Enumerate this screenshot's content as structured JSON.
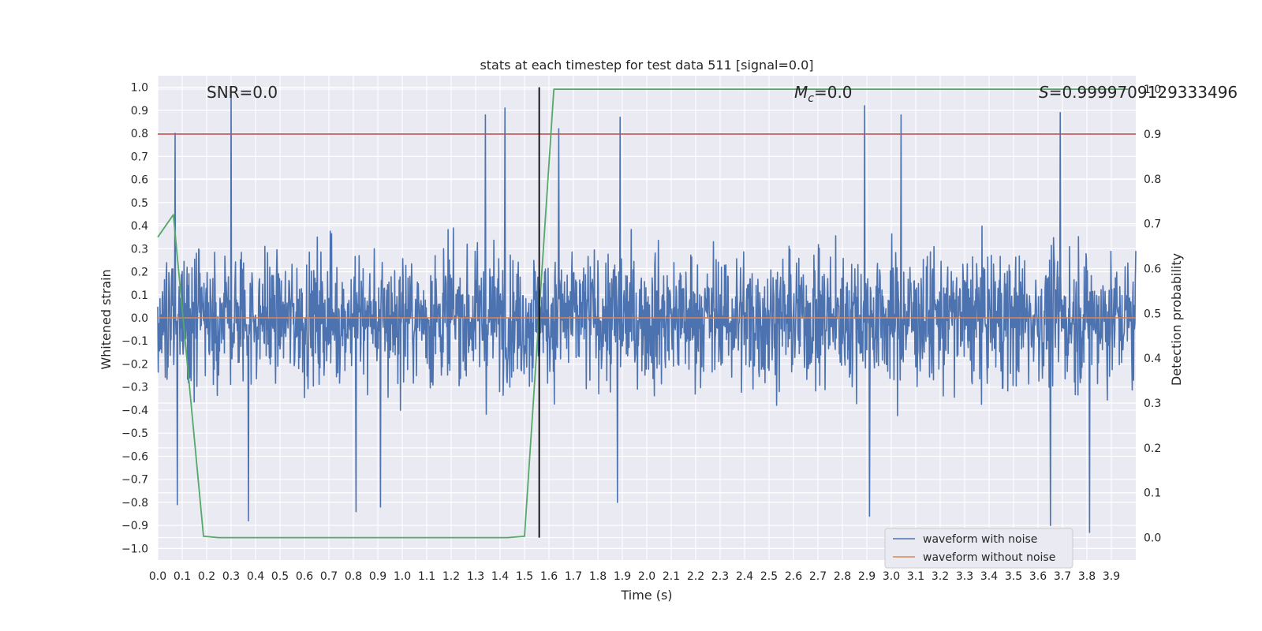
{
  "chart_data": {
    "type": "line",
    "title": "stats at each timestep for test data 511 [signal=0.0]",
    "xlabel": "Time (s)",
    "ylabel": "Whitened strain",
    "y2label": "Detection probability",
    "xlim": [
      0.0,
      4.0
    ],
    "ylim": [
      -1.05,
      1.05
    ],
    "y2lim": [
      -0.05,
      1.03
    ],
    "grid": true,
    "legend_position": "lower-right",
    "x_ticks": [
      0.0,
      0.1,
      0.2,
      0.3,
      0.4,
      0.5,
      0.6,
      0.7,
      0.8,
      0.9,
      1.0,
      1.1,
      1.2,
      1.3,
      1.4,
      1.5,
      1.6,
      1.7,
      1.8,
      1.9,
      2.0,
      2.1,
      2.2,
      2.3,
      2.4,
      2.5,
      2.6,
      2.7,
      2.8,
      2.9,
      3.0,
      3.1,
      3.2,
      3.3,
      3.4,
      3.5,
      3.6,
      3.7,
      3.8,
      3.9
    ],
    "x_tick_labels": [
      "0.0",
      "0.1",
      "0.2",
      "0.3",
      "0.4",
      "0.5",
      "0.6",
      "0.7",
      "0.8",
      "0.9",
      "1.0",
      "1.1",
      "1.2",
      "1.3",
      "1.4",
      "1.5",
      "1.6",
      "1.7",
      "1.8",
      "1.9",
      "2.0",
      "2.1",
      "2.2",
      "2.3",
      "2.4",
      "2.5",
      "2.6",
      "2.7",
      "2.8",
      "2.9",
      "3.0",
      "3.1",
      "3.2",
      "3.3",
      "3.4",
      "3.5",
      "3.6",
      "3.7",
      "3.8",
      "3.9"
    ],
    "y_ticks": [
      1.0,
      0.9,
      0.8,
      0.7,
      0.6,
      0.5,
      0.4,
      0.3,
      0.2,
      0.1,
      0.0,
      -0.1,
      -0.2,
      -0.3,
      -0.4,
      -0.5,
      -0.6,
      -0.7,
      -0.8,
      -0.9,
      -1.0
    ],
    "y_tick_labels": [
      "1.0",
      "0.9",
      "0.8",
      "0.7",
      "0.6",
      "0.5",
      "0.4",
      "0.3",
      "0.2",
      "0.1",
      "0.0",
      "−0.1",
      "−0.2",
      "−0.3",
      "−0.4",
      "−0.5",
      "−0.6",
      "−0.7",
      "−0.8",
      "−0.9",
      "−1.0"
    ],
    "y2_ticks": [
      1.0,
      0.9,
      0.8,
      0.7,
      0.6,
      0.5,
      0.4,
      0.3,
      0.2,
      0.1,
      0.0
    ],
    "y2_tick_labels": [
      "1.0",
      "0.9",
      "0.8",
      "0.7",
      "0.6",
      "0.5",
      "0.4",
      "0.3",
      "0.2",
      "0.1",
      "0.0"
    ],
    "series": [
      {
        "name": "waveform with noise",
        "axis": "left",
        "color": "#4c72b0",
        "note_values": "dense noise, envelope approx ±0.5 with peaks up to 1.0 and down to -0.93",
        "peaks": [
          {
            "x": 0.07,
            "y": 0.8
          },
          {
            "x": 0.3,
            "y": 1.0
          },
          {
            "x": 0.37,
            "y": -0.88
          },
          {
            "x": 0.08,
            "y": -0.81
          },
          {
            "x": 0.81,
            "y": -0.84
          },
          {
            "x": 0.91,
            "y": -0.82
          },
          {
            "x": 1.34,
            "y": 0.88
          },
          {
            "x": 1.42,
            "y": 0.91
          },
          {
            "x": 1.64,
            "y": 0.82
          },
          {
            "x": 1.89,
            "y": 0.87
          },
          {
            "x": 1.88,
            "y": -0.8
          },
          {
            "x": 2.89,
            "y": 0.92
          },
          {
            "x": 2.91,
            "y": -0.86
          },
          {
            "x": 3.04,
            "y": 0.88
          },
          {
            "x": 3.69,
            "y": 0.89
          },
          {
            "x": 3.65,
            "y": -0.9
          },
          {
            "x": 3.81,
            "y": -0.93
          }
        ]
      },
      {
        "name": "waveform without noise",
        "axis": "left",
        "color": "#dd8452",
        "x": [
          0.0,
          4.0
        ],
        "values": [
          0.0,
          0.0
        ]
      },
      {
        "name": "",
        "axis": "right",
        "color": "#55a868",
        "x": [
          0.0,
          0.064,
          0.187,
          0.25,
          1.43,
          1.5,
          1.62,
          3.97
        ],
        "values": [
          0.67,
          0.72,
          0.003,
          0.0,
          0.0,
          0.003,
          1.0,
          1.0
        ]
      }
    ],
    "threshold_line": {
      "axis": "right",
      "value": 0.9,
      "color": "#c44e52"
    },
    "vertical_line": {
      "x": 1.56,
      "color": "#000000"
    },
    "annotations": {
      "snr": "SNR=0.0",
      "mc_symbol": "M",
      "mc_sub": "c",
      "mc_value": "=0.0",
      "s_symbol": "S",
      "s_value": "=0.9999709129333496"
    },
    "colors": {
      "background": "#eaeaf2",
      "grid": "#ffffff",
      "text": "#262626"
    }
  }
}
